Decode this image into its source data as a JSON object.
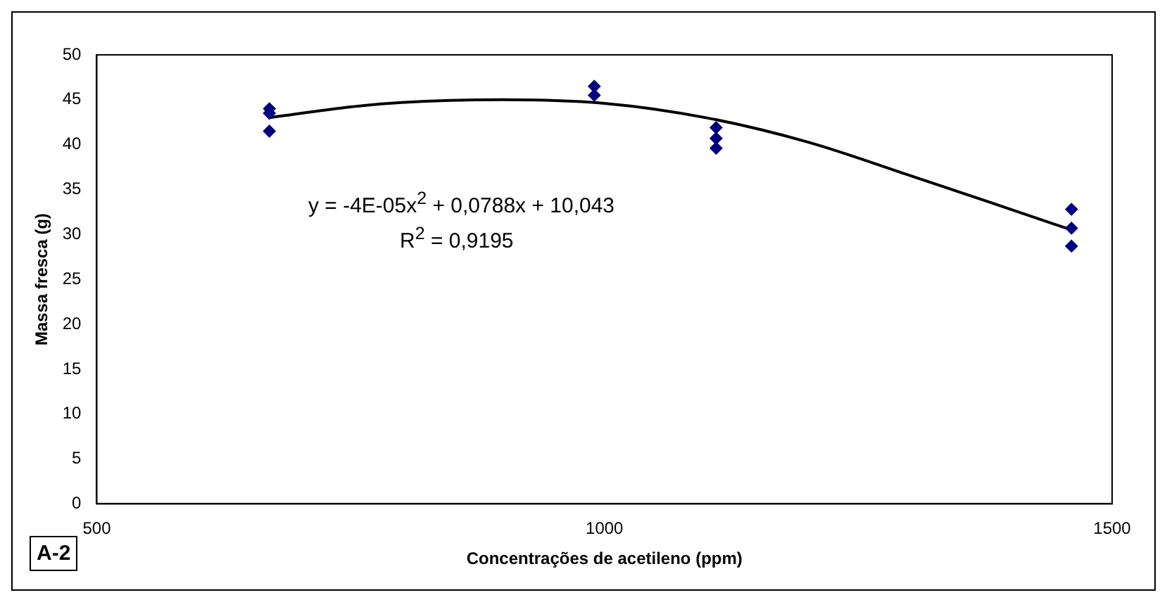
{
  "chart_data": {
    "type": "scatter",
    "xlabel": "Concentrações de acetileno (ppm)",
    "ylabel": "Massa fresca (g)",
    "xlim": [
      500,
      1500
    ],
    "xticks": [
      500,
      1000,
      1500
    ],
    "ylim": [
      0,
      50
    ],
    "yticks": [
      0,
      5,
      10,
      15,
      20,
      25,
      30,
      35,
      40,
      45,
      50
    ],
    "grid": false,
    "legend": false,
    "marker": "diamond",
    "series": [
      {
        "type": "scatter",
        "color": "#000080",
        "x": [
          670,
          670,
          670,
          990,
          990,
          1110,
          1110,
          1110,
          1460,
          1460,
          1460
        ],
        "values": [
          44,
          43.5,
          41.5,
          46.5,
          45.5,
          41.9,
          40.7,
          39.6,
          32.8,
          30.7,
          28.7
        ]
      },
      {
        "type": "line",
        "color": "#000000",
        "marker": "none",
        "x": [
          670,
          750,
          800,
          900,
          1000,
          1100,
          1200,
          1300,
          1400,
          1460
        ],
        "values": [
          43,
          44.2,
          44.7,
          45,
          44.6,
          43,
          40.3,
          36.6,
          32.8,
          30.5
        ]
      }
    ],
    "annotations": [
      "y = -4E-05x$^{2}$ + 0,0788x + 10,043",
      "R$^{2}$ = 0,9195",
      "A-2"
    ]
  }
}
